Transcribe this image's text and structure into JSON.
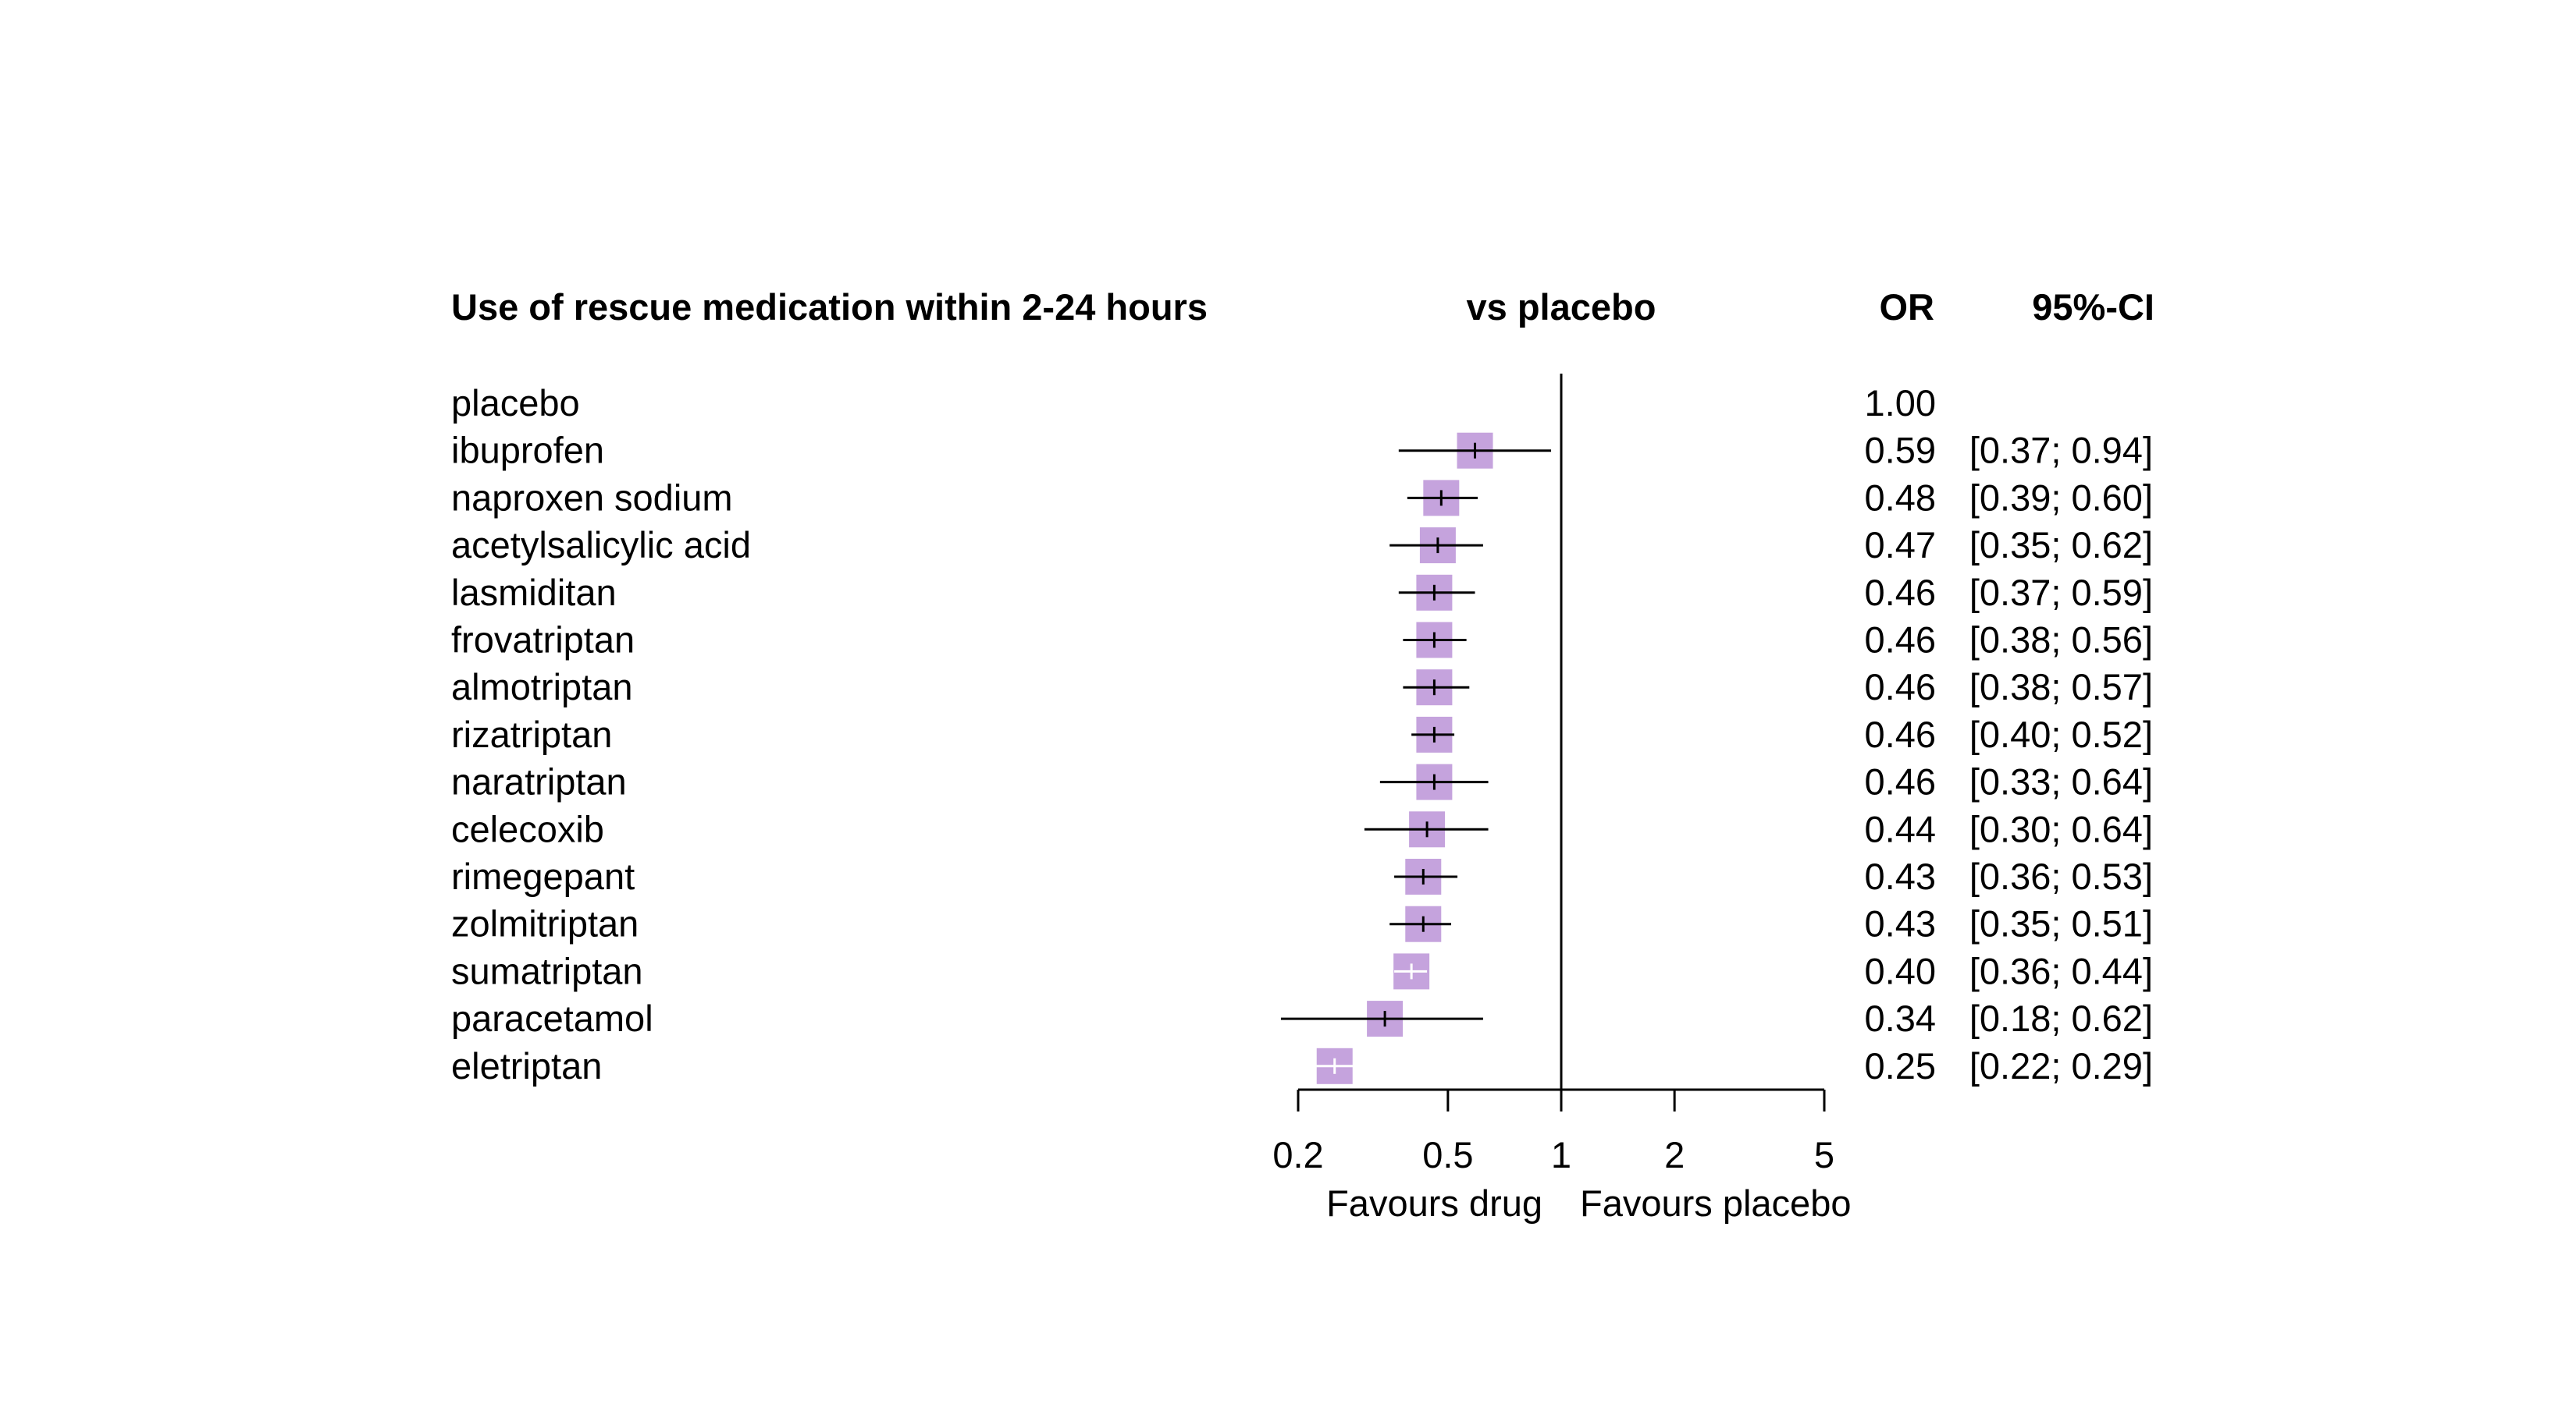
{
  "headers": {
    "title": "Use of rescue medication within 2-24 hours",
    "comparison": "vs placebo",
    "or": "OR",
    "ci": "95%-CI"
  },
  "chart_data": {
    "type": "forest",
    "scale": "log",
    "xlim": [
      0.2,
      5
    ],
    "reference_line": 1,
    "ticks": [
      0.2,
      0.5,
      1,
      2,
      5
    ],
    "tick_labels": [
      "0.2",
      "0.5",
      "1",
      "2",
      "5"
    ],
    "left_annotation": "Favours drug",
    "right_annotation": "Favours placebo",
    "marker_color": "#c5a3dd",
    "ci_color": "#000000",
    "rows": [
      {
        "label": "placebo",
        "or": null,
        "lo": null,
        "hi": null,
        "or_text": "1.00",
        "ci_text": ""
      },
      {
        "label": "ibuprofen",
        "or": 0.59,
        "lo": 0.37,
        "hi": 0.94,
        "or_text": "0.59",
        "ci_text": "[0.37; 0.94]"
      },
      {
        "label": "naproxen sodium",
        "or": 0.48,
        "lo": 0.39,
        "hi": 0.6,
        "or_text": "0.48",
        "ci_text": "[0.39; 0.60]"
      },
      {
        "label": "acetylsalicylic acid",
        "or": 0.47,
        "lo": 0.35,
        "hi": 0.62,
        "or_text": "0.47",
        "ci_text": "[0.35; 0.62]"
      },
      {
        "label": "lasmiditan",
        "or": 0.46,
        "lo": 0.37,
        "hi": 0.59,
        "or_text": "0.46",
        "ci_text": "[0.37; 0.59]"
      },
      {
        "label": "frovatriptan",
        "or": 0.46,
        "lo": 0.38,
        "hi": 0.56,
        "or_text": "0.46",
        "ci_text": "[0.38; 0.56]"
      },
      {
        "label": "almotriptan",
        "or": 0.46,
        "lo": 0.38,
        "hi": 0.57,
        "or_text": "0.46",
        "ci_text": "[0.38; 0.57]"
      },
      {
        "label": "rizatriptan",
        "or": 0.46,
        "lo": 0.4,
        "hi": 0.52,
        "or_text": "0.46",
        "ci_text": "[0.40; 0.52]"
      },
      {
        "label": "naratriptan",
        "or": 0.46,
        "lo": 0.33,
        "hi": 0.64,
        "or_text": "0.46",
        "ci_text": "[0.33; 0.64]"
      },
      {
        "label": "celecoxib",
        "or": 0.44,
        "lo": 0.3,
        "hi": 0.64,
        "or_text": "0.44",
        "ci_text": "[0.30; 0.64]"
      },
      {
        "label": "rimegepant",
        "or": 0.43,
        "lo": 0.36,
        "hi": 0.53,
        "or_text": "0.43",
        "ci_text": "[0.36; 0.53]"
      },
      {
        "label": "zolmitriptan",
        "or": 0.43,
        "lo": 0.35,
        "hi": 0.51,
        "or_text": "0.43",
        "ci_text": "[0.35; 0.51]"
      },
      {
        "label": "sumatriptan",
        "or": 0.4,
        "lo": 0.36,
        "hi": 0.44,
        "or_text": "0.40",
        "ci_text": "[0.36; 0.44]"
      },
      {
        "label": "paracetamol",
        "or": 0.34,
        "lo": 0.18,
        "hi": 0.62,
        "or_text": "0.34",
        "ci_text": "[0.18; 0.62]"
      },
      {
        "label": "eletriptan",
        "or": 0.25,
        "lo": 0.22,
        "hi": 0.29,
        "or_text": "0.25",
        "ci_text": "[0.22; 0.29]"
      }
    ]
  }
}
